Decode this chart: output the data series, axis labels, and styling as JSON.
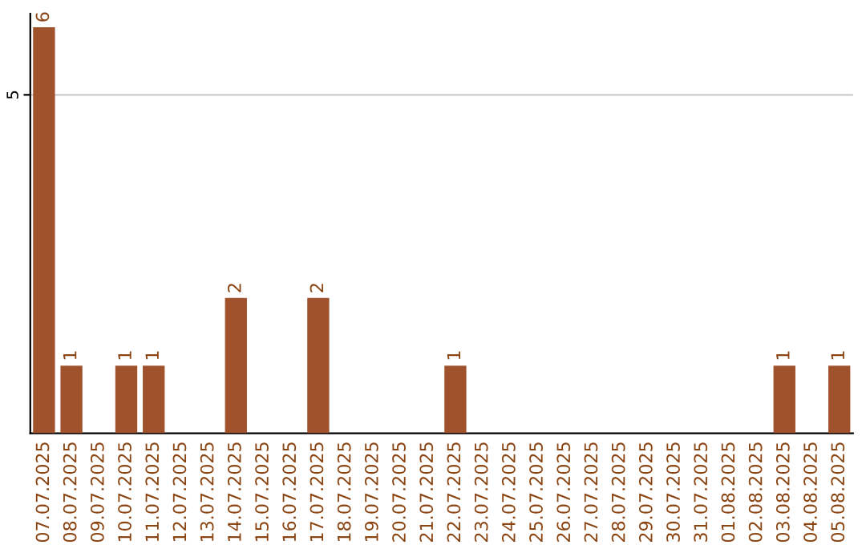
{
  "chart_data": {
    "type": "bar",
    "categories": [
      "07.07.2025",
      "08.07.2025",
      "09.07.2025",
      "10.07.2025",
      "11.07.2025",
      "12.07.2025",
      "13.07.2025",
      "14.07.2025",
      "15.07.2025",
      "16.07.2025",
      "17.07.2025",
      "18.07.2025",
      "19.07.2025",
      "20.07.2025",
      "21.07.2025",
      "22.07.2025",
      "23.07.2025",
      "24.07.2025",
      "25.07.2025",
      "26.07.2025",
      "27.07.2025",
      "28.07.2025",
      "29.07.2025",
      "30.07.2025",
      "31.07.2025",
      "01.08.2025",
      "02.08.2025",
      "03.08.2025",
      "04.08.2025",
      "05.08.2025"
    ],
    "values": [
      6,
      1,
      0,
      1,
      1,
      0,
      0,
      2,
      0,
      0,
      2,
      0,
      0,
      0,
      0,
      1,
      0,
      0,
      0,
      0,
      0,
      0,
      0,
      0,
      0,
      0,
      0,
      1,
      0,
      1
    ],
    "value_labels": [
      "6",
      "1",
      null,
      "1",
      "1",
      null,
      null,
      "2",
      null,
      null,
      "2",
      null,
      null,
      null,
      null,
      "1",
      null,
      null,
      null,
      null,
      null,
      null,
      null,
      null,
      null,
      null,
      null,
      "1",
      null,
      "1"
    ],
    "color": "#a0522d",
    "ylim": [
      0,
      6.2
    ],
    "yticks": [
      5
    ],
    "grid": "y"
  }
}
